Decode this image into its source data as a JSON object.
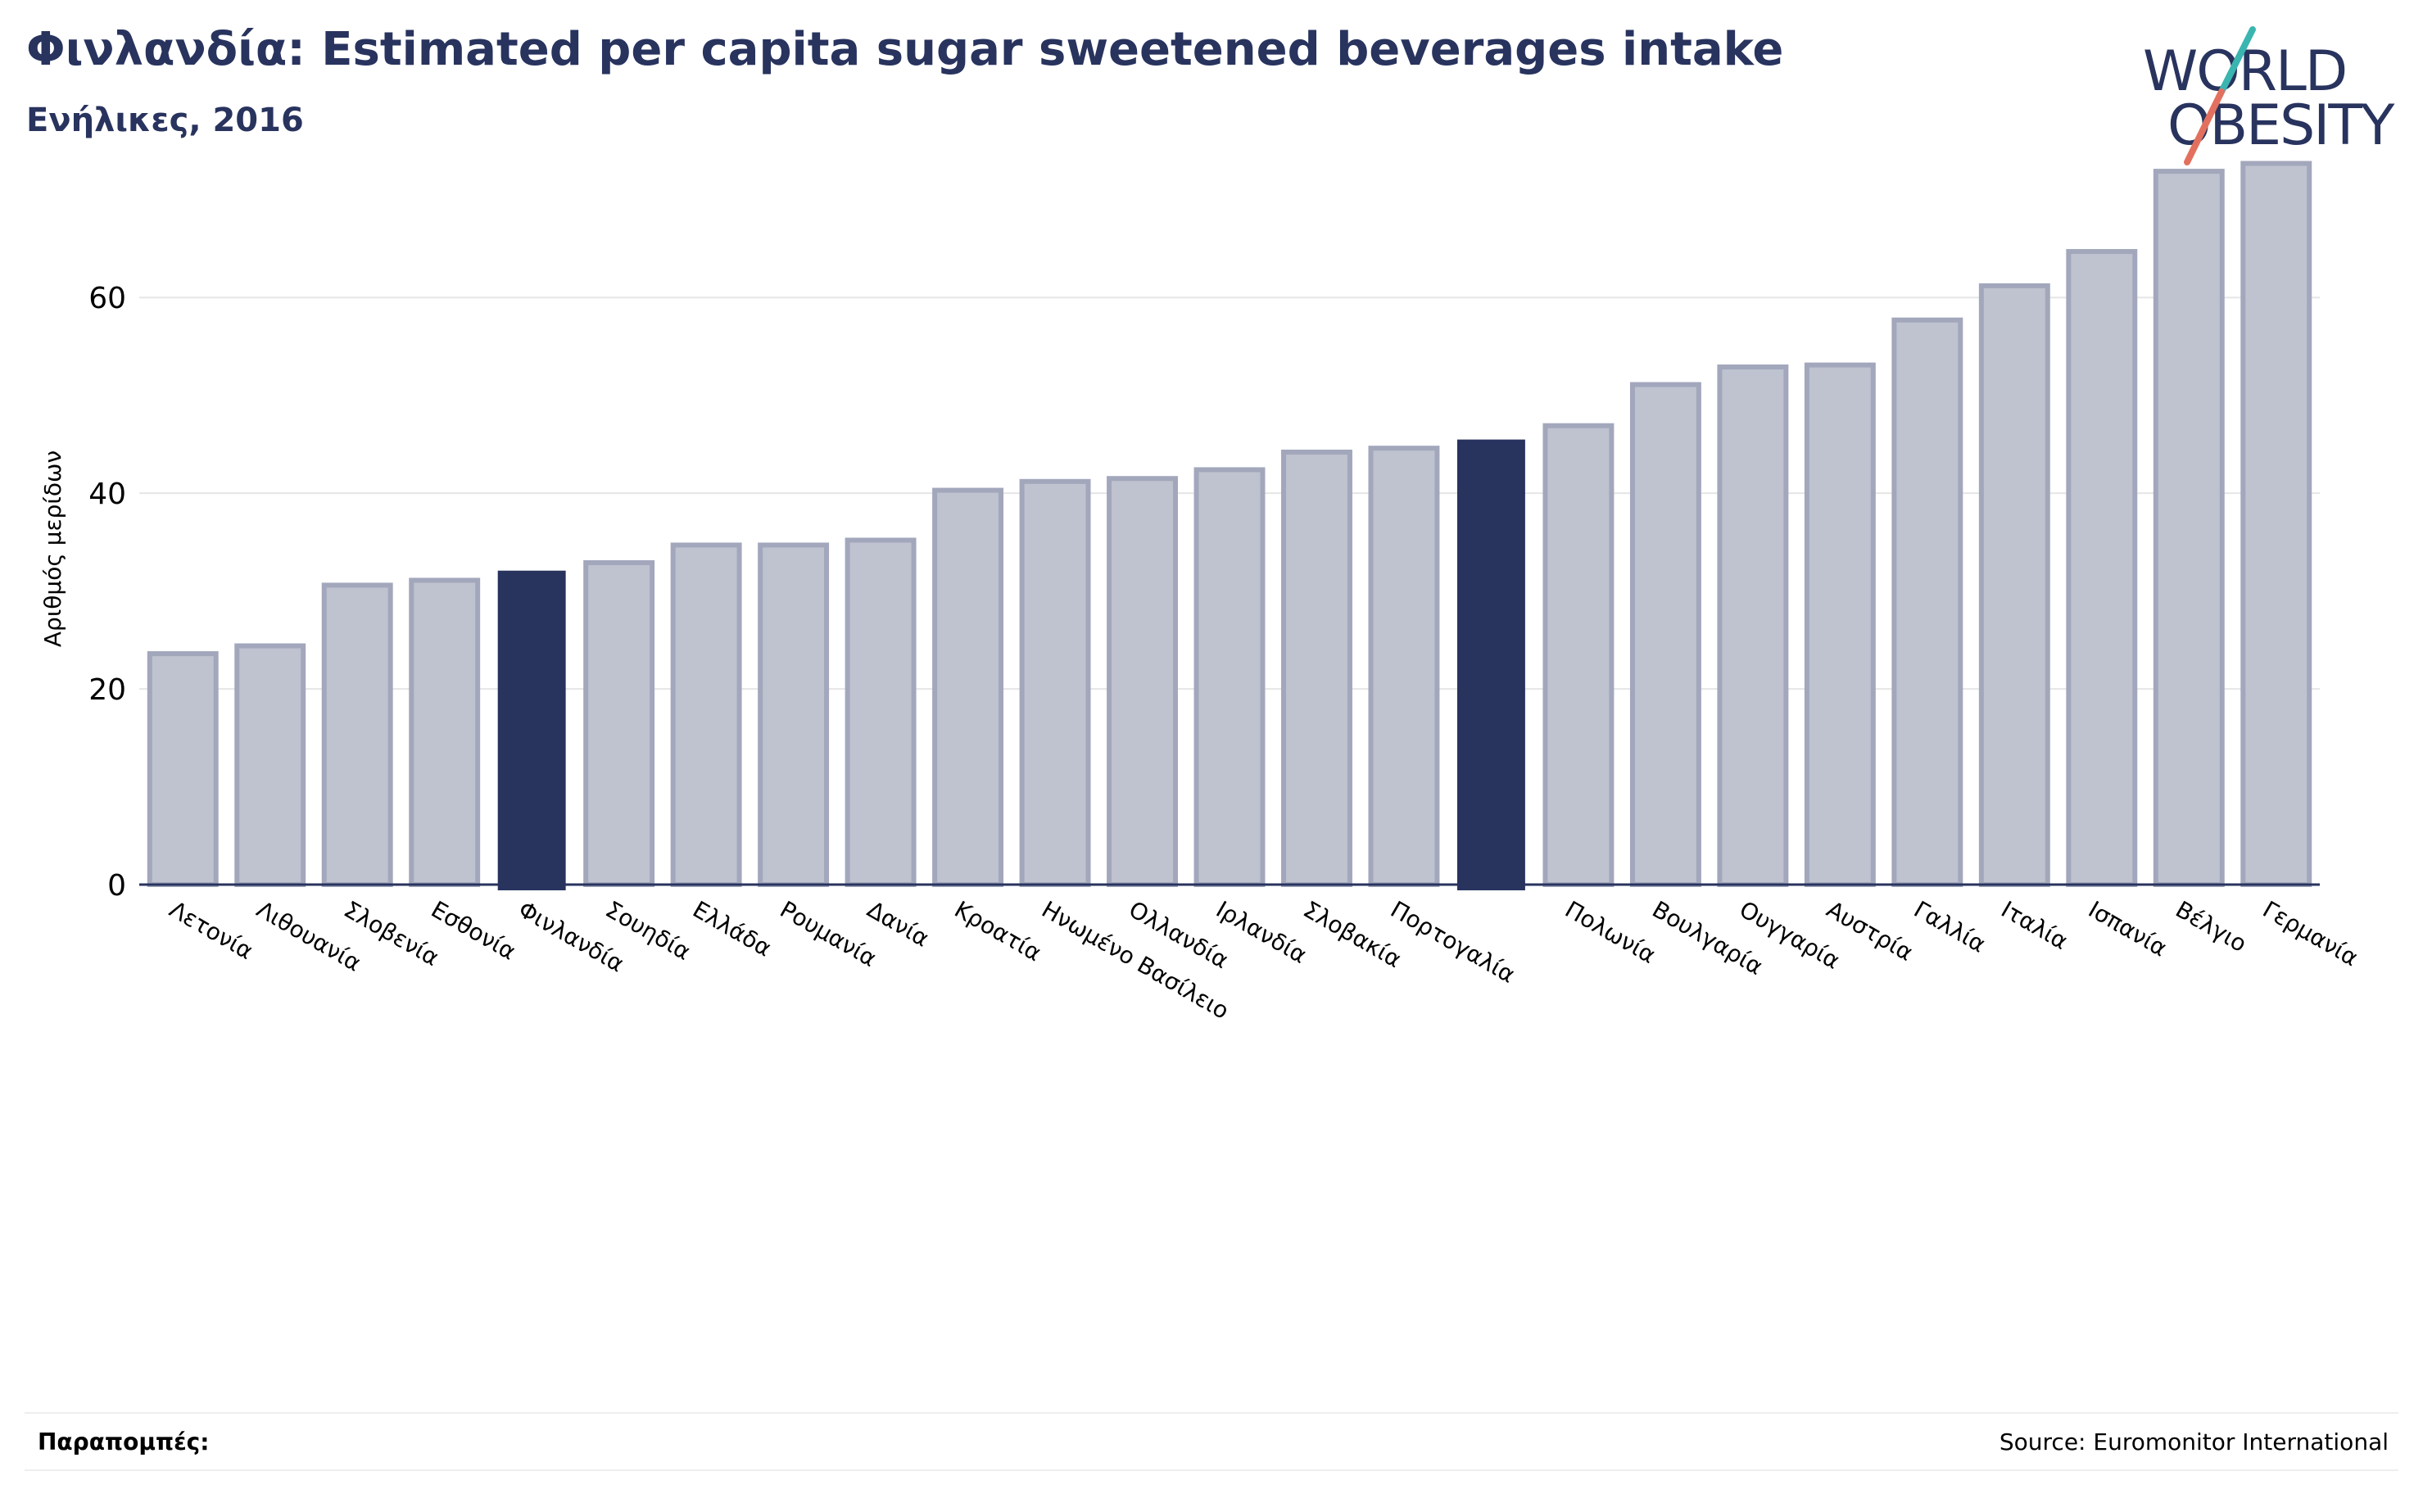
{
  "header": {
    "title": "Φινλανδία: Estimated per capita sugar sweetened beverages intake",
    "subtitle": "Ενήλικες, 2016"
  },
  "logo": {
    "line1": "WORLD",
    "line2": "OBESITY",
    "colors": {
      "text": "#28335e",
      "slash_top": "#3ab5b0",
      "slash_bottom": "#e3705f"
    }
  },
  "footer": {
    "references_label": "Παραπομπές:",
    "source": "Source: Euromonitor International"
  },
  "colors": {
    "bar": "#bfc2cf",
    "bar_stroke": "#a2a7bc",
    "highlight": "#28335e",
    "axis": "#28335e",
    "grid": "#e6e6e6"
  },
  "chart_data": {
    "type": "bar",
    "title": "Φινλανδία: Estimated per capita sugar sweetened beverages intake",
    "subtitle": "Ενήλικες, 2016",
    "xlabel": "",
    "ylabel": "Αριθμός μερίδων",
    "ylim": [
      0,
      75
    ],
    "yticks": [
      0,
      20,
      40,
      60
    ],
    "grid": true,
    "categories": [
      "Λετονία",
      "Λιθουανία",
      "Σλοβενία",
      "Εσθονία",
      "Φινλανδία",
      "Σουηδία",
      "Ελλάδα",
      "Ρουμανία",
      "Δανία",
      "Κροατία",
      "Ηνωμένο Βασίλειο",
      "Ολλανδία",
      "Ιρλανδία",
      "Σλοβακία",
      "Πορτογαλία",
      "",
      "Πολωνία",
      "Βουλγαρία",
      "Ουγγαρία",
      "Αυστρία",
      "Γαλλία",
      "Ιταλία",
      "Ισπανία",
      "Βέλγιο",
      "Γερμανία"
    ],
    "values": [
      23.6,
      24.4,
      30.6,
      31.1,
      32.0,
      32.9,
      34.7,
      34.7,
      35.2,
      40.3,
      41.2,
      41.5,
      42.4,
      44.2,
      44.6,
      45.4,
      46.9,
      51.1,
      52.9,
      53.1,
      57.7,
      61.2,
      64.7,
      72.9,
      73.7
    ],
    "highlighted": [
      4,
      15
    ]
  }
}
